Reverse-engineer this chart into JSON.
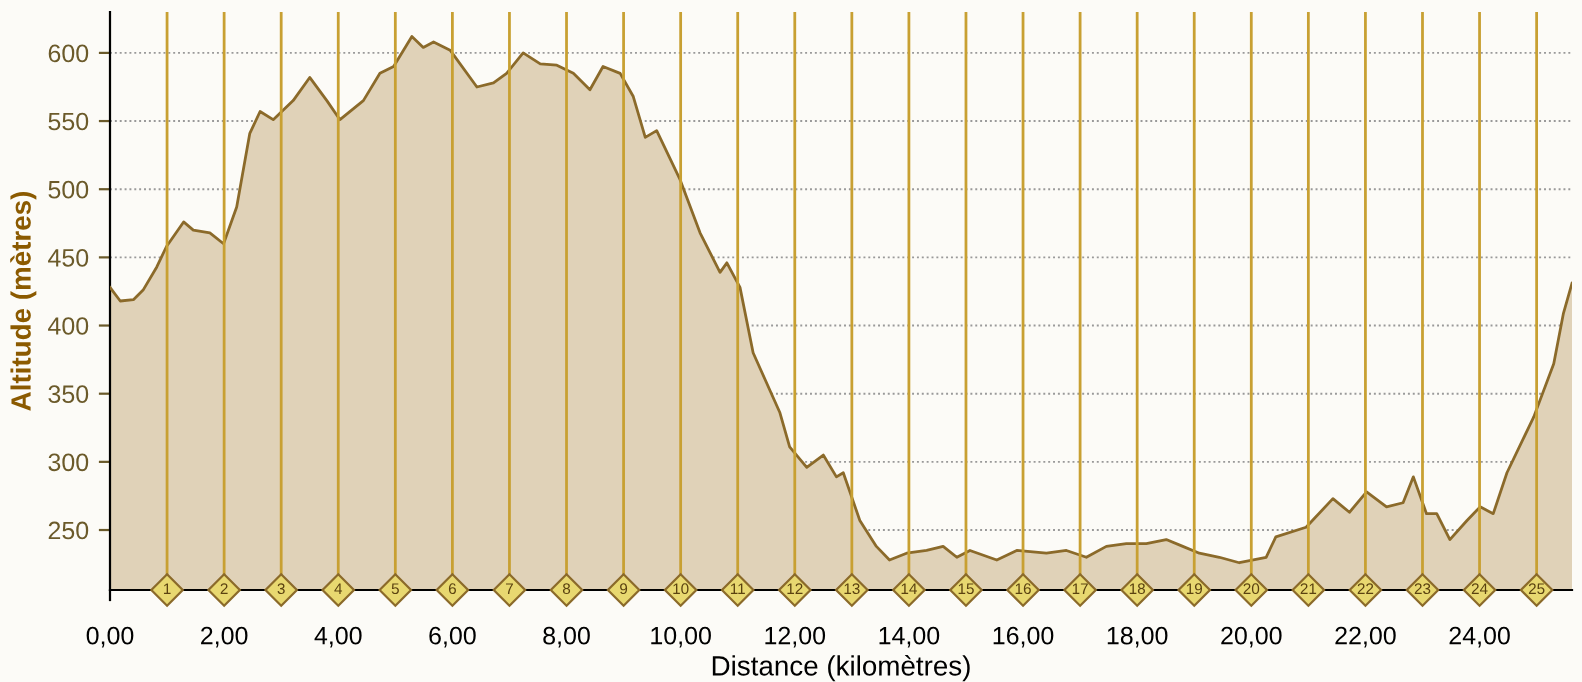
{
  "chart_data": {
    "type": "area",
    "xlabel": "Distance (kilomètres)",
    "ylabel": "Altitude (mètres)",
    "xlim": [
      0,
      25.62
    ],
    "ylim": [
      206,
      630
    ],
    "xticks": [
      {
        "value": 0,
        "label": "0,00"
      },
      {
        "value": 2,
        "label": "2,00"
      },
      {
        "value": 4,
        "label": "4,00"
      },
      {
        "value": 6,
        "label": "6,00"
      },
      {
        "value": 8,
        "label": "8,00"
      },
      {
        "value": 10,
        "label": "10,00"
      },
      {
        "value": 12,
        "label": "12,00"
      },
      {
        "value": 14,
        "label": "14,00"
      },
      {
        "value": 16,
        "label": "16,00"
      },
      {
        "value": 18,
        "label": "18,00"
      },
      {
        "value": 20,
        "label": "20,00"
      },
      {
        "value": 22,
        "label": "22,00"
      },
      {
        "value": 24,
        "label": "24,00"
      }
    ],
    "yticks": [
      250,
      300,
      350,
      400,
      450,
      500,
      550,
      600
    ],
    "grid": "y",
    "series": [
      {
        "color": "#8b6a2a",
        "x": [
          0,
          0.18,
          0.41,
          0.58,
          0.82,
          0.99,
          1.29,
          1.46,
          1.75,
          1.99,
          2.22,
          2.45,
          2.63,
          2.86,
          3.21,
          3.5,
          3.8,
          4.03,
          4.44,
          4.73,
          4.97,
          5.29,
          5.49,
          5.67,
          5.96,
          6.43,
          6.72,
          6.95,
          7.24,
          7.54,
          7.83,
          8.12,
          8.41,
          8.64,
          8.94,
          9.17,
          9.38,
          9.58,
          9.99,
          10.34,
          10.69,
          10.81,
          11.04,
          11.27,
          11.74,
          11.91,
          12.21,
          12.5,
          12.73,
          12.85,
          13.14,
          13.43,
          13.66,
          13.96,
          14.31,
          14.6,
          14.84,
          15.07,
          15.54,
          15.89,
          16.41,
          16.76,
          17.11,
          17.46,
          17.81,
          18.16,
          18.51,
          18.8,
          19.09,
          19.44,
          19.79,
          20.26,
          20.43,
          20.96,
          21.43,
          21.72,
          22.02,
          22.37,
          22.66,
          22.84,
          23.07,
          23.25,
          23.48,
          23.78,
          24.01,
          24.24,
          24.48,
          24.95,
          25.3,
          25.47,
          25.62
        ],
        "values": [
          428,
          418,
          419,
          426,
          443,
          458,
          476,
          470,
          468,
          460,
          487,
          541,
          557,
          551,
          565,
          582,
          565,
          551,
          565,
          585,
          590,
          612,
          604,
          608,
          602,
          575,
          578,
          585,
          600,
          592,
          591,
          585,
          573,
          590,
          585,
          568,
          538,
          543,
          507,
          468,
          439,
          446,
          428,
          380,
          336,
          311,
          296,
          305,
          289,
          292,
          257,
          238,
          228,
          233,
          235,
          238,
          230,
          235,
          228,
          235,
          233,
          235,
          230,
          238,
          240,
          240,
          243,
          238,
          233,
          230,
          226,
          230,
          245,
          252,
          273,
          263,
          278,
          267,
          270,
          289,
          262,
          262,
          243,
          257,
          267,
          262,
          292,
          333,
          372,
          409,
          431
        ]
      }
    ],
    "ref_lines": [
      {
        "axis": "x",
        "value": 1,
        "label": "1",
        "color": "#c8a032"
      },
      {
        "axis": "x",
        "value": 2,
        "label": "2",
        "color": "#c8a032"
      },
      {
        "axis": "x",
        "value": 3,
        "label": "3",
        "color": "#c8a032"
      },
      {
        "axis": "x",
        "value": 4,
        "label": "4",
        "color": "#c8a032"
      },
      {
        "axis": "x",
        "value": 5,
        "label": "5",
        "color": "#c8a032"
      },
      {
        "axis": "x",
        "value": 6,
        "label": "6",
        "color": "#c8a032"
      },
      {
        "axis": "x",
        "value": 7,
        "label": "7",
        "color": "#c8a032"
      },
      {
        "axis": "x",
        "value": 8,
        "label": "8",
        "color": "#c8a032"
      },
      {
        "axis": "x",
        "value": 9,
        "label": "9",
        "color": "#c8a032"
      },
      {
        "axis": "x",
        "value": 10,
        "label": "10",
        "color": "#c8a032"
      },
      {
        "axis": "x",
        "value": 11,
        "label": "11",
        "color": "#c8a032"
      },
      {
        "axis": "x",
        "value": 12,
        "label": "12",
        "color": "#c8a032"
      },
      {
        "axis": "x",
        "value": 13,
        "label": "13",
        "color": "#c8a032"
      },
      {
        "axis": "x",
        "value": 14,
        "label": "14",
        "color": "#c8a032"
      },
      {
        "axis": "x",
        "value": 15,
        "label": "15",
        "color": "#c8a032"
      },
      {
        "axis": "x",
        "value": 16,
        "label": "16",
        "color": "#c8a032"
      },
      {
        "axis": "x",
        "value": 17,
        "label": "17",
        "color": "#c8a032"
      },
      {
        "axis": "x",
        "value": 18,
        "label": "18",
        "color": "#c8a032"
      },
      {
        "axis": "x",
        "value": 19,
        "label": "19",
        "color": "#c8a032"
      },
      {
        "axis": "x",
        "value": 20,
        "label": "20",
        "color": "#c8a032"
      },
      {
        "axis": "x",
        "value": 21,
        "label": "21",
        "color": "#c8a032"
      },
      {
        "axis": "x",
        "value": 22,
        "label": "22",
        "color": "#c8a032"
      },
      {
        "axis": "x",
        "value": 23,
        "label": "23",
        "color": "#c8a032"
      },
      {
        "axis": "x",
        "value": 24,
        "label": "24",
        "color": "#c8a032"
      },
      {
        "axis": "x",
        "value": 25,
        "label": "25",
        "color": "#c8a032"
      }
    ]
  }
}
